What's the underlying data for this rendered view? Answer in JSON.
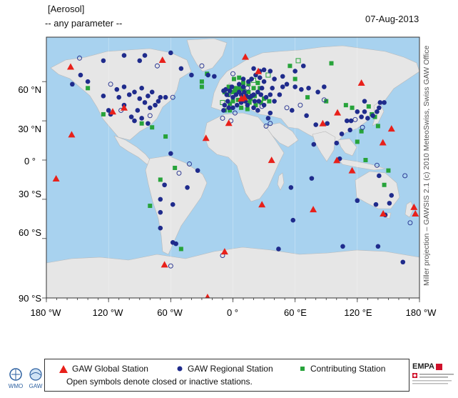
{
  "header": {
    "title": "[Aerosol]",
    "subtitle": "-- any parameter --",
    "date": "07-Aug-2013"
  },
  "side_credit": "Miller projection – GAWSIS 2.1 (c) 2010 MeteoSwiss, Swiss GAW Office",
  "axes": {
    "y_labels": [
      "60 °N",
      "30 °N",
      "0 °",
      "30 °S",
      "60 °S",
      "90 °S"
    ],
    "x_labels": [
      "180 °W",
      "120 °W",
      "60 °W",
      "0 °",
      "60 °E",
      "120 °E",
      "180 °W"
    ]
  },
  "legend": {
    "global": "GAW Global Station",
    "regional": "GAW Regional Station",
    "contributing": "Contributing Station",
    "note": "Open symbols denote closed or inactive stations."
  },
  "logos": {
    "wmo": "WMO",
    "gaw": "GAW",
    "empa": "EMPA"
  },
  "colors": {
    "ocean": "#a8d2ef",
    "land": "#e6e6e6",
    "global": "#e8201a",
    "regional": "#1f2b8c",
    "contributing": "#27a33a"
  },
  "stations": {
    "global": [
      [
        -156.6,
        71.3
      ],
      [
        -155.6,
        19.5
      ],
      [
        -116,
        37
      ],
      [
        -170.6,
        -14.2
      ],
      [
        -68,
        76.5
      ],
      [
        -24.5,
        -90
      ],
      [
        -26,
        16.8
      ],
      [
        -4,
        28.3
      ],
      [
        8,
        47
      ],
      [
        11,
        47.8
      ],
      [
        12,
        78.9
      ],
      [
        24.5,
        67.9
      ],
      [
        37.3,
        -0.05
      ],
      [
        28,
        -34
      ],
      [
        77.5,
        -37.8
      ],
      [
        86.7,
        28
      ],
      [
        100.9,
        36.3
      ],
      [
        100.3,
        -0.2
      ],
      [
        115,
        -8
      ],
      [
        124,
        59
      ],
      [
        144.7,
        13.4
      ],
      [
        145,
        -41
      ],
      [
        153,
        24
      ],
      [
        176,
        -41
      ],
      [
        174.7,
        -36
      ],
      [
        -8,
        -70
      ],
      [
        -66,
        -80
      ],
      [
        -105,
        40
      ]
    ],
    "regional": [
      [
        -147,
        65
      ],
      [
        -155,
        58
      ],
      [
        -112,
        54
      ],
      [
        -105,
        56
      ],
      [
        -100,
        50
      ],
      [
        -95,
        52
      ],
      [
        -90,
        47
      ],
      [
        -85,
        44
      ],
      [
        -80,
        40
      ],
      [
        -75,
        42
      ],
      [
        -92,
        38
      ],
      [
        -105,
        42
      ],
      [
        -118,
        35
      ],
      [
        -120,
        38
      ],
      [
        -72,
        45
      ],
      [
        -70,
        48
      ],
      [
        -78,
        52
      ],
      [
        -65,
        48
      ],
      [
        -82,
        49
      ],
      [
        -88,
        55
      ],
      [
        -110,
        48
      ],
      [
        -125,
        49
      ],
      [
        -98,
        33
      ],
      [
        -88,
        32
      ],
      [
        -82,
        28
      ],
      [
        -95,
        30
      ],
      [
        -140,
        60
      ],
      [
        -60,
        82
      ],
      [
        -50,
        70
      ],
      [
        -85,
        80
      ],
      [
        -40,
        65
      ],
      [
        -18,
        64
      ],
      [
        -60,
        5
      ],
      [
        -44,
        -21
      ],
      [
        -66,
        -19
      ],
      [
        -70,
        -30
      ],
      [
        -70,
        -52
      ],
      [
        -34,
        -8
      ],
      [
        -5,
        45
      ],
      [
        0,
        48
      ],
      [
        3,
        50
      ],
      [
        6,
        52
      ],
      [
        10,
        56
      ],
      [
        15,
        60
      ],
      [
        18,
        62
      ],
      [
        22,
        65
      ],
      [
        26,
        63
      ],
      [
        30,
        60
      ],
      [
        28,
        55
      ],
      [
        24,
        52
      ],
      [
        20,
        50
      ],
      [
        16,
        48
      ],
      [
        12,
        45
      ],
      [
        8,
        44
      ],
      [
        4,
        42
      ],
      [
        0,
        40
      ],
      [
        -4,
        40
      ],
      [
        -8,
        42
      ],
      [
        -9,
        38
      ],
      [
        14,
        42
      ],
      [
        20,
        40
      ],
      [
        24,
        38
      ],
      [
        34,
        32
      ],
      [
        36,
        36
      ],
      [
        30,
        42
      ],
      [
        40,
        45
      ],
      [
        45,
        50
      ],
      [
        38,
        55
      ],
      [
        48,
        56
      ],
      [
        52,
        58
      ],
      [
        60,
        56
      ],
      [
        66,
        54
      ],
      [
        73,
        55
      ],
      [
        82,
        52
      ],
      [
        88,
        56
      ],
      [
        40,
        62
      ],
      [
        48,
        64
      ],
      [
        60,
        68
      ],
      [
        68,
        72
      ],
      [
        36,
        68
      ],
      [
        30,
        69
      ],
      [
        20,
        70
      ],
      [
        26,
        68
      ],
      [
        10,
        62
      ],
      [
        6,
        58
      ],
      [
        -1,
        56
      ],
      [
        -3,
        53
      ],
      [
        -7,
        54
      ],
      [
        -9,
        53
      ],
      [
        -6,
        50
      ],
      [
        8,
        50
      ],
      [
        11,
        52
      ],
      [
        13,
        49
      ],
      [
        18,
        49
      ],
      [
        21,
        45
      ],
      [
        25,
        45
      ],
      [
        27,
        50
      ],
      [
        32,
        48
      ],
      [
        36,
        50
      ],
      [
        -70,
        -40
      ],
      [
        -58,
        -34
      ],
      [
        76,
        -14
      ],
      [
        56,
        -21
      ],
      [
        58,
        -46
      ],
      [
        100,
        13
      ],
      [
        105,
        20
      ],
      [
        103,
        1
      ],
      [
        78,
        12
      ],
      [
        80,
        27
      ],
      [
        71,
        34
      ],
      [
        91,
        28
      ],
      [
        110,
        30
      ],
      [
        113,
        23
      ],
      [
        120,
        37
      ],
      [
        124,
        33
      ],
      [
        127,
        37
      ],
      [
        130,
        32
      ],
      [
        135,
        34
      ],
      [
        139,
        37
      ],
      [
        141,
        40
      ],
      [
        142,
        44
      ],
      [
        146,
        44
      ],
      [
        127,
        45
      ],
      [
        138,
        -34
      ],
      [
        120,
        -31
      ],
      [
        151,
        -33
      ],
      [
        141,
        -12
      ],
      [
        153,
        -27
      ],
      [
        147,
        -42
      ],
      [
        -105,
        80
      ],
      [
        -125,
        76
      ],
      [
        -90,
        76
      ],
      [
        44,
        -68
      ],
      [
        140,
        -66
      ],
      [
        164,
        -78
      ],
      [
        -58,
        -63
      ],
      [
        -55,
        -64
      ],
      [
        106,
        -66
      ],
      [
        -24,
        65
      ],
      [
        114,
        30
      ],
      [
        57,
        38
      ]
    ],
    "regional_open": [
      [
        -118,
        58
      ],
      [
        -108,
        38
      ],
      [
        -80,
        34
      ],
      [
        -58,
        48
      ],
      [
        -42,
        -3
      ],
      [
        -52,
        -10
      ],
      [
        2,
        36
      ],
      [
        -2,
        30
      ],
      [
        -10,
        32
      ],
      [
        32,
        26
      ],
      [
        36,
        28
      ],
      [
        52,
        40
      ],
      [
        65,
        42
      ],
      [
        88,
        46
      ],
      [
        118,
        31
      ],
      [
        125,
        25
      ],
      [
        139,
        -4
      ],
      [
        171,
        -48
      ],
      [
        -60,
        -81
      ],
      [
        -10,
        -73
      ],
      [
        -148,
        78
      ],
      [
        -30,
        72
      ],
      [
        166,
        -12
      ],
      [
        -4,
        50
      ],
      [
        14,
        55
      ],
      [
        28,
        41
      ],
      [
        -73,
        72
      ],
      [
        0,
        66
      ]
    ],
    "contributing": [
      [
        -8,
        38
      ],
      [
        -3,
        43
      ],
      [
        0,
        45
      ],
      [
        5,
        46
      ],
      [
        9,
        47
      ],
      [
        13,
        48
      ],
      [
        17,
        47
      ],
      [
        21,
        49
      ],
      [
        15,
        52
      ],
      [
        10,
        54
      ],
      [
        6,
        55
      ],
      [
        2,
        55
      ],
      [
        -4,
        56
      ],
      [
        20,
        55
      ],
      [
        26,
        55
      ],
      [
        24,
        59
      ],
      [
        15,
        58
      ],
      [
        10,
        59
      ],
      [
        6,
        63
      ],
      [
        -5,
        50
      ],
      [
        -8,
        52
      ],
      [
        0,
        52
      ],
      [
        3,
        53
      ],
      [
        16,
        44
      ],
      [
        22,
        42
      ],
      [
        27,
        44
      ],
      [
        30,
        47
      ],
      [
        35,
        45
      ],
      [
        8,
        40
      ],
      [
        14,
        39
      ],
      [
        -3,
        38
      ],
      [
        1,
        62
      ],
      [
        -25,
        66
      ],
      [
        -30,
        56
      ],
      [
        -78,
        25
      ],
      [
        -65,
        18
      ],
      [
        -125,
        35
      ],
      [
        -140,
        55
      ],
      [
        -88,
        28
      ],
      [
        -56,
        -6
      ],
      [
        -70,
        -15
      ],
      [
        -80,
        -35
      ],
      [
        -50,
        -68
      ],
      [
        60,
        62
      ],
      [
        95,
        74
      ],
      [
        55,
        72
      ],
      [
        72,
        48
      ],
      [
        90,
        45
      ],
      [
        109,
        42
      ],
      [
        115,
        40
      ],
      [
        131,
        41
      ],
      [
        134,
        35
      ],
      [
        137,
        33
      ],
      [
        124,
        22
      ],
      [
        120,
        14
      ],
      [
        128,
        0
      ],
      [
        140,
        26
      ],
      [
        150,
        -8
      ],
      [
        146,
        -19
      ],
      [
        -30,
        60
      ]
    ],
    "contributing_open": [
      [
        34,
        65
      ],
      [
        -10,
        44
      ],
      [
        20,
        61
      ],
      [
        63,
        76
      ]
    ]
  }
}
